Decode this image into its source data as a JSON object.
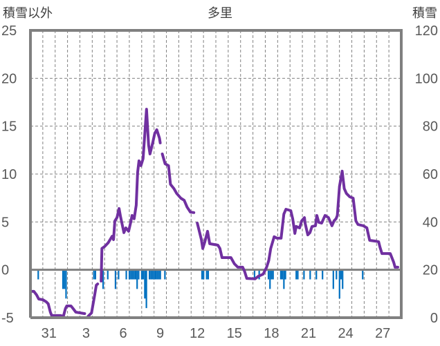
{
  "chart_data": {
    "type": "line",
    "title": "多里",
    "ylabel_left": "積雪以外",
    "ylabel_right": "積雪",
    "xlim": [
      0,
      30
    ],
    "ylim_left": [
      -5,
      25
    ],
    "ylim_right": [
      0,
      120
    ],
    "yticks_left": [
      25,
      20,
      15,
      10,
      5,
      0,
      -5
    ],
    "yticks_right": [
      120,
      100,
      80,
      60,
      40,
      20,
      0
    ],
    "xticks": [
      {
        "day": 1.5,
        "label": "31"
      },
      {
        "day": 4.5,
        "label": "3"
      },
      {
        "day": 7.5,
        "label": "6"
      },
      {
        "day": 10.5,
        "label": "9"
      },
      {
        "day": 13.5,
        "label": "12"
      },
      {
        "day": 16.5,
        "label": "15"
      },
      {
        "day": 19.5,
        "label": "18"
      },
      {
        "day": 22.5,
        "label": "21"
      },
      {
        "day": 25.5,
        "label": "24"
      },
      {
        "day": 28.5,
        "label": "27"
      }
    ],
    "grid": true,
    "colors": {
      "line": "#7030A0",
      "bars": "#0070C0",
      "axis": "#808080",
      "grid": "#808080"
    },
    "series": [
      {
        "name": "積雪",
        "axis": "right",
        "kind": "line",
        "points": [
          [
            0.06,
            11.0
          ],
          [
            0.28,
            11.0
          ],
          [
            0.5,
            9.5
          ],
          [
            0.67,
            7.8
          ],
          [
            1.0,
            7.5
          ],
          [
            1.28,
            6.6
          ],
          [
            1.44,
            5.8
          ],
          [
            1.61,
            2.3
          ],
          [
            1.72,
            0.9
          ],
          [
            2.44,
            0.9
          ],
          [
            2.67,
            0.6
          ],
          [
            2.83,
            3.8
          ],
          [
            2.94,
            4.9
          ],
          [
            3.28,
            4.9
          ],
          [
            3.5,
            3.5
          ],
          [
            3.67,
            2.3
          ],
          [
            4.39,
            1.7
          ],
          null,
          [
            4.67,
            0.6
          ],
          [
            4.94,
            2.0
          ],
          [
            5.17,
            8.7
          ],
          [
            5.33,
            13.6
          ],
          [
            5.44,
            14.1
          ],
          null,
          [
            5.72,
            15.3
          ],
          [
            5.78,
            28.9
          ],
          [
            6.0,
            29.7
          ],
          [
            6.28,
            31.2
          ],
          [
            6.44,
            32.6
          ],
          [
            6.61,
            34.0
          ],
          [
            6.72,
            32.6
          ],
          [
            6.83,
            40.4
          ],
          [
            7.0,
            41.8
          ],
          [
            7.17,
            45.6
          ],
          [
            7.28,
            42.4
          ],
          [
            7.56,
            35.5
          ],
          [
            7.72,
            37.5
          ],
          [
            7.94,
            36.1
          ],
          [
            8.11,
            39.8
          ],
          [
            8.22,
            42.7
          ],
          [
            8.39,
            41.3
          ],
          [
            8.56,
            47.0
          ],
          [
            8.67,
            60.6
          ],
          [
            8.78,
            65.5
          ],
          [
            8.94,
            63.5
          ],
          [
            9.11,
            66.4
          ],
          [
            9.39,
            87.1
          ],
          [
            9.56,
            72.1
          ],
          [
            9.67,
            68.4
          ],
          [
            9.89,
            73.0
          ],
          [
            10.06,
            77.0
          ],
          [
            10.22,
            78.5
          ],
          [
            10.44,
            75.0
          ],
          [
            10.5,
            73.0
          ],
          null,
          [
            10.67,
            68.4
          ],
          [
            10.89,
            64.3
          ],
          [
            11.17,
            63.5
          ],
          [
            11.33,
            55.7
          ],
          [
            11.61,
            53.9
          ],
          [
            11.83,
            51.9
          ],
          [
            12.17,
            49.9
          ],
          [
            12.44,
            49.0
          ],
          [
            12.67,
            46.2
          ],
          [
            12.94,
            44.1
          ],
          [
            13.22,
            43.9
          ],
          null,
          [
            13.5,
            39.5
          ],
          [
            13.83,
            32.6
          ],
          [
            13.94,
            28.9
          ],
          [
            14.11,
            31.7
          ],
          [
            14.33,
            36.1
          ],
          [
            14.5,
            30.9
          ],
          [
            15.17,
            30.3
          ],
          [
            15.33,
            28.9
          ],
          [
            15.5,
            25.1
          ],
          [
            16.22,
            25.1
          ],
          [
            16.5,
            22.5
          ],
          [
            16.78,
            21.1
          ],
          [
            17.17,
            21.1
          ],
          [
            17.33,
            19.3
          ],
          [
            17.5,
            16.4
          ],
          [
            18.17,
            16.2
          ],
          [
            18.44,
            17.3
          ],
          [
            18.83,
            18.2
          ],
          [
            19.11,
            21.1
          ],
          [
            19.28,
            23.9
          ],
          [
            19.44,
            28.9
          ],
          [
            19.72,
            33.8
          ],
          [
            19.94,
            33.2
          ],
          [
            20.28,
            33.2
          ],
          [
            20.5,
            43.3
          ],
          [
            20.67,
            45.3
          ],
          [
            21.06,
            44.7
          ],
          [
            21.22,
            41.3
          ],
          [
            21.39,
            35.2
          ],
          [
            21.5,
            38.1
          ],
          [
            21.78,
            37.5
          ],
          [
            21.94,
            40.4
          ],
          [
            22.17,
            41.8
          ],
          [
            22.22,
            39.5
          ],
          [
            22.44,
            34.6
          ],
          [
            22.61,
            35.5
          ],
          [
            22.78,
            38.1
          ],
          [
            23.06,
            38.4
          ],
          [
            23.17,
            42.7
          ],
          [
            23.33,
            39.8
          ],
          [
            23.56,
            39.5
          ],
          [
            23.83,
            42.7
          ],
          [
            24.11,
            41.8
          ],
          [
            24.39,
            38.4
          ],
          [
            24.56,
            40.4
          ],
          [
            24.72,
            41.3
          ],
          [
            24.83,
            42.7
          ],
          [
            25.0,
            54.8
          ],
          [
            25.22,
            61.2
          ],
          [
            25.39,
            53.9
          ],
          [
            25.56,
            51.9
          ],
          [
            25.83,
            50.5
          ],
          [
            26.11,
            49.9
          ],
          [
            26.33,
            40.4
          ],
          [
            26.5,
            38.9
          ],
          [
            26.94,
            38.4
          ],
          [
            27.22,
            37.5
          ],
          [
            27.44,
            32.3
          ],
          [
            27.89,
            32.0
          ],
          [
            28.17,
            31.7
          ],
          [
            28.28,
            29.4
          ],
          [
            28.44,
            26.8
          ],
          [
            29.11,
            26.8
          ],
          [
            29.39,
            23.1
          ],
          [
            29.5,
            21.1
          ],
          [
            29.72,
            21.1
          ]
        ]
      },
      {
        "name": "積雪以外",
        "axis": "left",
        "kind": "bar",
        "points": [
          [
            0.625,
            -1
          ],
          [
            2.625,
            -2
          ],
          [
            2.75,
            -2
          ],
          [
            2.875,
            -3
          ],
          [
            5.125,
            -1
          ],
          [
            5.25,
            -1
          ],
          [
            5.875,
            -2
          ],
          [
            6.25,
            -1
          ],
          [
            6.875,
            -2
          ],
          [
            7.125,
            -1
          ],
          [
            7.75,
            -1
          ],
          [
            8.0,
            -1
          ],
          [
            8.125,
            -1
          ],
          [
            8.25,
            -1
          ],
          [
            8.375,
            -1
          ],
          [
            8.5,
            -1
          ],
          [
            8.625,
            -2
          ],
          [
            8.75,
            -1
          ],
          [
            9.0,
            -1
          ],
          [
            9.125,
            -1
          ],
          [
            9.25,
            -3
          ],
          [
            9.375,
            -4
          ],
          [
            9.625,
            -1
          ],
          [
            9.75,
            -1
          ],
          [
            9.875,
            -1
          ],
          [
            10.0,
            -1
          ],
          [
            10.125,
            -1
          ],
          [
            10.25,
            -1
          ],
          [
            10.375,
            -1
          ],
          [
            10.5,
            -1
          ],
          [
            10.875,
            -1
          ],
          [
            13.875,
            -1
          ],
          [
            14.0,
            -1
          ],
          [
            14.25,
            -1
          ],
          [
            14.375,
            -1
          ],
          [
            18.125,
            -1
          ],
          [
            18.5,
            -1
          ],
          [
            19.25,
            -1
          ],
          [
            19.375,
            -2
          ],
          [
            19.5,
            -1
          ],
          [
            19.625,
            -1
          ],
          [
            20.25,
            -1
          ],
          [
            20.375,
            -1
          ],
          [
            20.5,
            -2
          ],
          [
            20.625,
            -1
          ],
          [
            21.5,
            -1
          ],
          [
            21.625,
            -1
          ],
          [
            22.125,
            -1
          ],
          [
            22.625,
            -1
          ],
          [
            23.125,
            -1
          ],
          [
            23.625,
            -1
          ],
          [
            24.5,
            -2
          ],
          [
            24.75,
            -1
          ],
          [
            25.0,
            -3
          ],
          [
            25.125,
            -1
          ],
          [
            25.25,
            -2
          ],
          [
            26.875,
            -1
          ]
        ]
      }
    ]
  }
}
